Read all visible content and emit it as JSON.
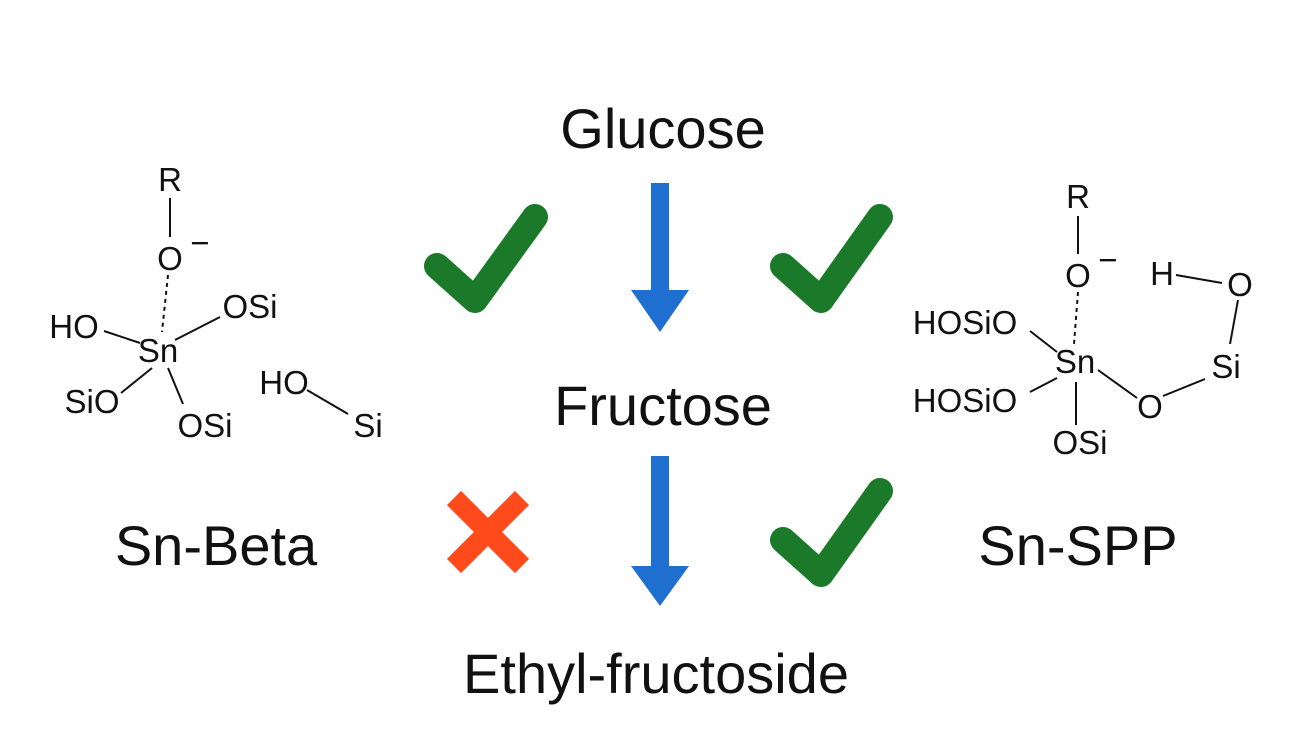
{
  "pathway": {
    "glucose": "Glucose",
    "fructose": "Fructose",
    "ethyl_fructoside": "Ethyl-fructoside"
  },
  "catalysts": {
    "left": {
      "name": "Sn-Beta",
      "step1": "check",
      "step2": "cross",
      "structure": {
        "R": "R",
        "O_minus": "O",
        "minus": "−",
        "HO": "HO",
        "OSi_upper": "OSi",
        "Sn": "Sn",
        "SiO": "SiO",
        "OSi_lower": "OSi",
        "silanol_HO": "HO",
        "silanol_Si": "Si"
      }
    },
    "right": {
      "name": "Sn-SPP",
      "step1": "check",
      "step2": "check",
      "structure": {
        "R": "R",
        "O_minus": "O",
        "minus": "−",
        "H": "H",
        "O_top": "O",
        "HOSiO_upper": "HOSiO",
        "Sn": "Sn",
        "Si": "Si",
        "HOSiO_lower": "HOSiO",
        "O_bridge": "O",
        "OSi": "OSi"
      }
    }
  },
  "colors": {
    "arrow": "#1f6fd0",
    "check": "#1a7a2a",
    "cross": "#ff4a1c",
    "text": "#111111"
  }
}
